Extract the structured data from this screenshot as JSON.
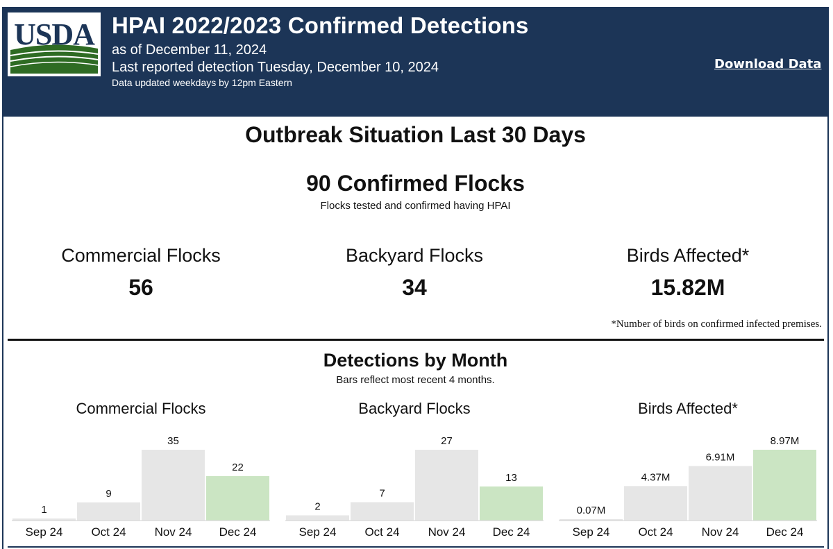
{
  "header": {
    "logo_text": "USDA",
    "title": "HPAI 2022/2023 Confirmed Detections",
    "as_of": "as of December 11, 2024",
    "last_detection": "Last reported detection Tuesday, December 10, 2024",
    "update_note": "Data updated weekdays by 12pm Eastern",
    "download_label": "Download Data",
    "colors": {
      "navy": "#1c3557",
      "logo_green": "#2e6b23",
      "logo_blue": "#1c3557"
    }
  },
  "summary": {
    "title": "Outbreak Situation Last 30 Days",
    "confirmed_flocks": "90 Confirmed Flocks",
    "confirmed_sub": "Flocks tested and confirmed having HPAI",
    "stats": [
      {
        "label": "Commercial Flocks",
        "value": "56"
      },
      {
        "label": "Backyard Flocks",
        "value": "34"
      },
      {
        "label": "Birds Affected*",
        "value": "15.82M"
      }
    ],
    "footnote": "*Number of birds on confirmed infected premises."
  },
  "monthly": {
    "title": "Detections by Month",
    "subtitle": "Bars reflect most recent 4 months."
  },
  "chart_data": [
    {
      "type": "bar",
      "title": "Commercial Flocks",
      "categories": [
        "Sep 24",
        "Oct 24",
        "Nov 24",
        "Dec 24"
      ],
      "values": [
        1,
        9,
        35,
        22
      ],
      "labels": [
        "1",
        "9",
        "35",
        "22"
      ],
      "ylim": [
        0,
        35
      ],
      "highlight_index": 3,
      "colors": {
        "bar": "#e6e6e6",
        "highlight": "#cbe5c3"
      }
    },
    {
      "type": "bar",
      "title": "Backyard Flocks",
      "categories": [
        "Sep 24",
        "Oct 24",
        "Nov 24",
        "Dec 24"
      ],
      "values": [
        2,
        7,
        27,
        13
      ],
      "labels": [
        "2",
        "7",
        "27",
        "13"
      ],
      "ylim": [
        0,
        27
      ],
      "highlight_index": 3,
      "colors": {
        "bar": "#e6e6e6",
        "highlight": "#cbe5c3"
      }
    },
    {
      "type": "bar",
      "title": "Birds Affected*",
      "categories": [
        "Sep 24",
        "Oct 24",
        "Nov 24",
        "Dec 24"
      ],
      "values": [
        0.07,
        4.37,
        6.91,
        8.97
      ],
      "labels": [
        "0.07M",
        "4.37M",
        "6.91M",
        "8.97M"
      ],
      "unit": "M",
      "ylim": [
        0,
        8.97
      ],
      "highlight_index": 3,
      "colors": {
        "bar": "#e6e6e6",
        "highlight": "#cbe5c3"
      }
    }
  ]
}
